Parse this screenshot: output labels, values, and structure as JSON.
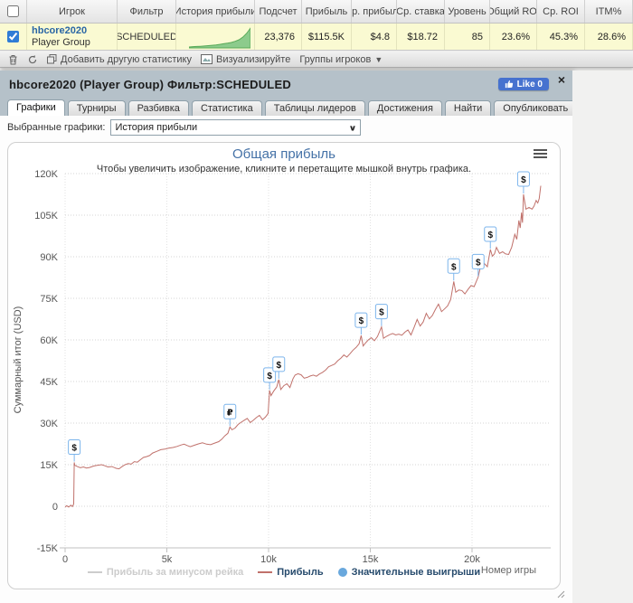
{
  "colors": {
    "accent_blue": "#4572a7",
    "line_red": "#c0716b",
    "marker_border": "#7cb5ec",
    "legend_text": "#274b6d",
    "like_blue": "#4672cf",
    "row_yellow": "#fafad2",
    "panel_header": "#b5c1c9",
    "spark_green": "#8ccb8c"
  },
  "stats_table": {
    "headers": [
      "Игрок",
      "Фильтр",
      "История прибыли",
      "Подсчет",
      "Прибыль",
      "Ср. прибыль",
      "Ср. ставка",
      "Уровень",
      "Общий ROI",
      "Ср. ROI",
      "ITM%"
    ],
    "row": {
      "player": "hbcore2020",
      "player_type": "Player Group",
      "filter": "SCHEDULED",
      "count": "23,376",
      "profit": "$115.5K",
      "av_profit": "$4.8",
      "av_stake": "$18.72",
      "level": "85",
      "total_roi": "23.6%",
      "av_roi": "45.3%",
      "itm": "28.6%",
      "sparkline": [
        0,
        0.02,
        0.03,
        0.04,
        0.05,
        0.07,
        0.09,
        0.11,
        0.14,
        0.17,
        0.2,
        0.24,
        0.3,
        0.38,
        0.52,
        0.72,
        1.0
      ]
    }
  },
  "toolbar": {
    "add_stat": "Добавить другую статистику",
    "visualize": "Визуализируйте",
    "groups": "Группы игроков"
  },
  "panel": {
    "title": "hbcore2020 (Player Group) Фильтр:SCHEDULED",
    "like_label": "Like 0",
    "close": "×"
  },
  "tabs": {
    "items": [
      "Графики",
      "Турниры",
      "Разбивка",
      "Статистика",
      "Таблицы лидеров",
      "Достижения",
      "Найти",
      "Опубликовать"
    ],
    "active": "Графики"
  },
  "selector": {
    "label": "Выбранные графики:",
    "value": "История прибыли"
  },
  "chart_data": {
    "type": "line",
    "title": "Общая прибыль",
    "subtitle": "Чтобы увеличить изображение, кликните и перетащите мышкой внутрь графика.",
    "ylabel": "Суммарный итог (USD)",
    "xlabel": "Номер игры",
    "xlim": [
      0,
      23870
    ],
    "ylim": [
      -15000,
      122000
    ],
    "grid": true,
    "y_ticks": [
      {
        "value": 120000,
        "label": "120K"
      },
      {
        "value": 105000,
        "label": "105K"
      },
      {
        "value": 90000,
        "label": "90K"
      },
      {
        "value": 75000,
        "label": "75K"
      },
      {
        "value": 60000,
        "label": "60K"
      },
      {
        "value": 45000,
        "label": "45K"
      },
      {
        "value": 30000,
        "label": "30K"
      },
      {
        "value": 15000,
        "label": "15K"
      },
      {
        "value": 0,
        "label": "0"
      },
      {
        "value": -15000,
        "label": "-15K"
      }
    ],
    "x_ticks": [
      {
        "value": 0,
        "label": "0"
      },
      {
        "value": 5000,
        "label": "5k"
      },
      {
        "value": 10000,
        "label": "10k"
      },
      {
        "value": 15000,
        "label": "15k"
      },
      {
        "value": 20000,
        "label": "20k"
      }
    ],
    "legend": [
      {
        "label": "Прибыль за минусом рейка",
        "symbol": "line",
        "color": "#cccccc",
        "text_color": "#cccccc",
        "enabled": false
      },
      {
        "label": "Прибыль",
        "symbol": "line",
        "color": "#c0716b",
        "text_color": "#274b6d",
        "enabled": true
      },
      {
        "label": "Значительные выигрыши",
        "symbol": "circle",
        "color": "#69a8dd",
        "text_color": "#274b6d",
        "enabled": true
      }
    ],
    "series": [
      {
        "name": "Прибыль",
        "color": "#c0716b",
        "points": [
          [
            0,
            -300
          ],
          [
            80,
            200
          ],
          [
            180,
            -300
          ],
          [
            280,
            400
          ],
          [
            360,
            -100
          ],
          [
            420,
            800
          ],
          [
            450,
            15800
          ],
          [
            470,
            14800
          ],
          [
            600,
            14300
          ],
          [
            750,
            13900
          ],
          [
            900,
            14200
          ],
          [
            1050,
            13800
          ],
          [
            1200,
            14000
          ],
          [
            1400,
            14500
          ],
          [
            1600,
            14800
          ],
          [
            1800,
            15000
          ],
          [
            1950,
            14600
          ],
          [
            2100,
            14200
          ],
          [
            2300,
            14300
          ],
          [
            2500,
            13700
          ],
          [
            2650,
            13500
          ],
          [
            2800,
            14300
          ],
          [
            2950,
            15000
          ],
          [
            3100,
            15400
          ],
          [
            3250,
            15200
          ],
          [
            3400,
            16100
          ],
          [
            3550,
            15900
          ],
          [
            3700,
            16800
          ],
          [
            3850,
            17600
          ],
          [
            4000,
            17900
          ],
          [
            4150,
            18300
          ],
          [
            4300,
            19200
          ],
          [
            4500,
            19800
          ],
          [
            4700,
            20400
          ],
          [
            4900,
            20600
          ],
          [
            5100,
            21000
          ],
          [
            5300,
            21200
          ],
          [
            5500,
            21600
          ],
          [
            5700,
            22100
          ],
          [
            5850,
            22400
          ],
          [
            6000,
            21900
          ],
          [
            6150,
            21500
          ],
          [
            6350,
            22000
          ],
          [
            6550,
            22500
          ],
          [
            6750,
            22900
          ],
          [
            6950,
            22400
          ],
          [
            7150,
            22200
          ],
          [
            7350,
            22800
          ],
          [
            7550,
            23300
          ],
          [
            7700,
            24200
          ],
          [
            7850,
            25400
          ],
          [
            8000,
            26300
          ],
          [
            8100,
            28600
          ],
          [
            8200,
            27600
          ],
          [
            8350,
            28200
          ],
          [
            8500,
            29500
          ],
          [
            8650,
            30300
          ],
          [
            8800,
            31000
          ],
          [
            8950,
            31700
          ],
          [
            9100,
            30200
          ],
          [
            9250,
            31000
          ],
          [
            9400,
            32000
          ],
          [
            9550,
            32800
          ],
          [
            9700,
            31200
          ],
          [
            9850,
            32200
          ],
          [
            9980,
            33500
          ],
          [
            10050,
            41800
          ],
          [
            10120,
            39900
          ],
          [
            10250,
            41500
          ],
          [
            10400,
            43000
          ],
          [
            10500,
            45700
          ],
          [
            10600,
            42100
          ],
          [
            10750,
            43500
          ],
          [
            10900,
            44200
          ],
          [
            11050,
            42800
          ],
          [
            11200,
            46000
          ],
          [
            11300,
            47300
          ],
          [
            11450,
            47800
          ],
          [
            11600,
            47400
          ],
          [
            11750,
            46200
          ],
          [
            11900,
            46500
          ],
          [
            12050,
            47000
          ],
          [
            12200,
            47300
          ],
          [
            12350,
            46900
          ],
          [
            12500,
            47700
          ],
          [
            12650,
            48300
          ],
          [
            12800,
            49100
          ],
          [
            12950,
            50300
          ],
          [
            13100,
            50800
          ],
          [
            13250,
            51300
          ],
          [
            13400,
            52500
          ],
          [
            13550,
            53400
          ],
          [
            13700,
            54600
          ],
          [
            13850,
            53800
          ],
          [
            14000,
            55000
          ],
          [
            14150,
            56300
          ],
          [
            14300,
            57300
          ],
          [
            14450,
            58600
          ],
          [
            14550,
            61600
          ],
          [
            14650,
            57800
          ],
          [
            14750,
            58800
          ],
          [
            14900,
            60000
          ],
          [
            15050,
            60800
          ],
          [
            15200,
            59700
          ],
          [
            15350,
            61200
          ],
          [
            15550,
            64700
          ],
          [
            15650,
            60600
          ],
          [
            15800,
            61300
          ],
          [
            15950,
            61900
          ],
          [
            16100,
            62300
          ],
          [
            16250,
            61800
          ],
          [
            16400,
            62100
          ],
          [
            16550,
            61700
          ],
          [
            16700,
            62800
          ],
          [
            16850,
            63600
          ],
          [
            17000,
            61800
          ],
          [
            17150,
            64500
          ],
          [
            17300,
            67400
          ],
          [
            17450,
            65000
          ],
          [
            17600,
            66500
          ],
          [
            17750,
            69600
          ],
          [
            17900,
            67600
          ],
          [
            18050,
            68800
          ],
          [
            18200,
            71000
          ],
          [
            18350,
            72900
          ],
          [
            18500,
            70200
          ],
          [
            18650,
            71200
          ],
          [
            18800,
            72300
          ],
          [
            18950,
            74600
          ],
          [
            19100,
            81100
          ],
          [
            19200,
            77200
          ],
          [
            19350,
            78000
          ],
          [
            19500,
            77800
          ],
          [
            19650,
            76600
          ],
          [
            19800,
            78200
          ],
          [
            19950,
            79600
          ],
          [
            20100,
            79200
          ],
          [
            20300,
            82700
          ],
          [
            20400,
            85900
          ],
          [
            20500,
            87000
          ],
          [
            20600,
            87600
          ],
          [
            20750,
            86400
          ],
          [
            20900,
            92600
          ],
          [
            21000,
            90200
          ],
          [
            21100,
            91000
          ],
          [
            21200,
            93400
          ],
          [
            21350,
            91200
          ],
          [
            21500,
            91800
          ],
          [
            21650,
            91000
          ],
          [
            21800,
            90800
          ],
          [
            21950,
            93500
          ],
          [
            22100,
            98100
          ],
          [
            22200,
            96300
          ],
          [
            22300,
            103100
          ],
          [
            22370,
            100400
          ],
          [
            22430,
            105900
          ],
          [
            22480,
            102300
          ],
          [
            22530,
            112500
          ],
          [
            22650,
            107200
          ],
          [
            22800,
            107800
          ],
          [
            22950,
            107200
          ],
          [
            23050,
            108300
          ],
          [
            23150,
            110300
          ],
          [
            23230,
            109400
          ],
          [
            23300,
            111000
          ],
          [
            23376,
            115600
          ]
        ]
      }
    ],
    "markers": [
      {
        "game": 450,
        "value": 15800,
        "glyph": "$"
      },
      {
        "game": 8100,
        "value": 28600,
        "glyph": "₽"
      },
      {
        "game": 10050,
        "value": 41800,
        "glyph": "$"
      },
      {
        "game": 10500,
        "value": 45700,
        "glyph": "$"
      },
      {
        "game": 14550,
        "value": 61600,
        "glyph": "$"
      },
      {
        "game": 15550,
        "value": 64700,
        "glyph": "$"
      },
      {
        "game": 19100,
        "value": 81100,
        "glyph": "$"
      },
      {
        "game": 20300,
        "value": 82700,
        "glyph": "$"
      },
      {
        "game": 20900,
        "value": 92600,
        "glyph": "$"
      },
      {
        "game": 22530,
        "value": 112500,
        "glyph": "$"
      }
    ]
  }
}
